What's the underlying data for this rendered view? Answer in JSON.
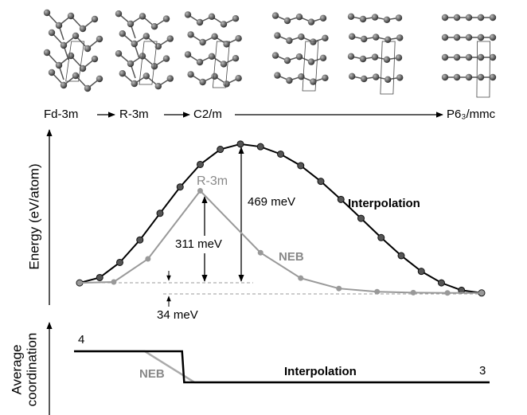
{
  "header": {
    "phases": [
      "Fd-3m",
      "R-3m",
      "C2/m",
      "P6₃/mmc"
    ]
  },
  "chart_data": [
    {
      "type": "line",
      "ylabel": "Energy (eV/atom)",
      "annotations": [
        "R-3m",
        "469 meV",
        "311 meV",
        "34 meV"
      ],
      "xlim": [
        0,
        1
      ],
      "ylim": [
        -0.075,
        0.517
      ],
      "series": [
        {
          "name": "Interpolation",
          "color": "#000000",
          "x": [
            0,
            0.05,
            0.1,
            0.15,
            0.2,
            0.25,
            0.3,
            0.35,
            0.4,
            0.45,
            0.5,
            0.55,
            0.6,
            0.65,
            0.7,
            0.75,
            0.8,
            0.85,
            0.9,
            0.95,
            1
          ],
          "values": [
            0,
            0.018,
            0.069,
            0.145,
            0.235,
            0.324,
            0.4,
            0.451,
            0.469,
            0.46,
            0.435,
            0.396,
            0.343,
            0.282,
            0.218,
            0.153,
            0.092,
            0.039,
            0,
            -0.025,
            -0.034
          ]
        },
        {
          "name": "NEB",
          "color": "#999999",
          "x": [
            0,
            0.085,
            0.17,
            0.3,
            0.45,
            0.55,
            0.645,
            0.74,
            0.83,
            0.915,
            1
          ],
          "values": [
            0,
            0.003,
            0.081,
            0.311,
            0.102,
            0.016,
            -0.019,
            -0.03,
            -0.033,
            -0.034,
            -0.034
          ]
        }
      ]
    },
    {
      "type": "line",
      "ylabel": [
        "Average",
        "coordination"
      ],
      "xlim": [
        0,
        1
      ],
      "ylim": [
        1.95,
        4.87
      ],
      "yticks": [
        4,
        3
      ],
      "series": [
        {
          "name": "NEB",
          "color": "#aaaaaa",
          "x": [
            0,
            0.17,
            0.29,
            1
          ],
          "values": [
            4,
            4,
            3,
            3
          ]
        },
        {
          "name": "Interpolation",
          "color": "#000000",
          "x": [
            0,
            0.26,
            0.265,
            1
          ],
          "values": [
            4,
            4,
            3,
            3
          ]
        }
      ]
    }
  ]
}
